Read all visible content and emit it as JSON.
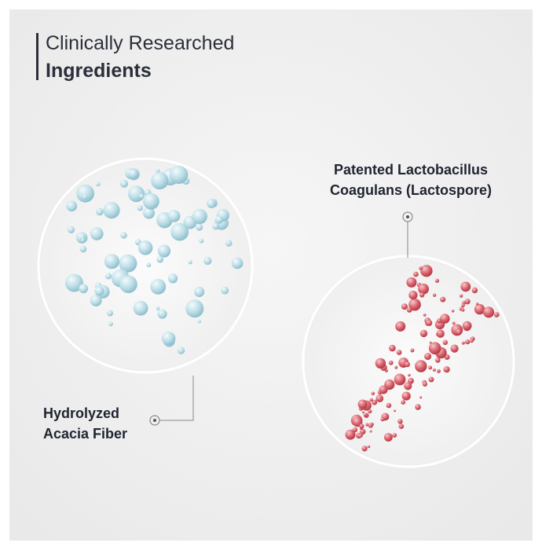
{
  "header": {
    "line1": "Clinically Researched",
    "line2": "Ingredients"
  },
  "ingredients": [
    {
      "label_line1": "Patented Lactobacillus",
      "label_line2": "Coagulans (Lactospore)"
    },
    {
      "label_line1": "Hydrolyzed",
      "label_line2": "Acacia Fiber"
    }
  ]
}
